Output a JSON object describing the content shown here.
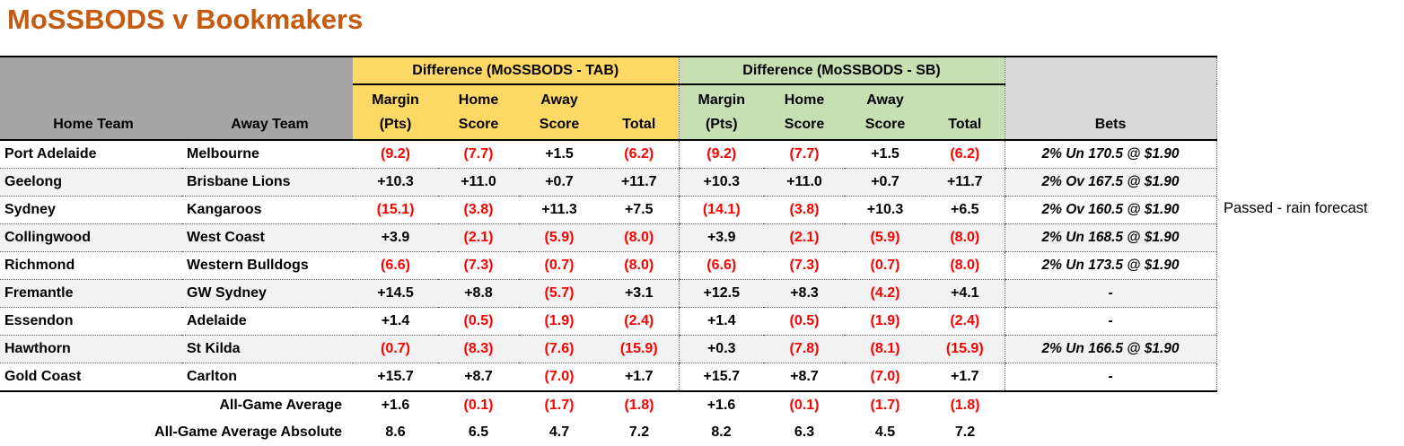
{
  "title": "MoSSBODS v Bookmakers",
  "side_note": "Passed - rain forecast",
  "table": {
    "group_headers": {
      "tab": "Difference (MoSSBODS - TAB)",
      "sb": "Difference (MoSSBODS - SB)"
    },
    "column_headers": {
      "home_team": "Home Team",
      "away_team": "Away Team",
      "bets": "Bets",
      "sub": [
        {
          "top": "Margin",
          "bottom": "(Pts)"
        },
        {
          "top": "Home",
          "bottom": "Score"
        },
        {
          "top": "Away",
          "bottom": "Score"
        },
        {
          "top": "",
          "bottom": "Total"
        }
      ]
    },
    "rows": [
      {
        "home": "Port Adelaide",
        "away": "Melbourne",
        "tab": [
          "(9.2)",
          "(7.7)",
          "+1.5",
          "(6.2)"
        ],
        "sb": [
          "(9.2)",
          "(7.7)",
          "+1.5",
          "(6.2)"
        ],
        "bet": "2% Un 170.5 @ $1.90"
      },
      {
        "home": "Geelong",
        "away": "Brisbane Lions",
        "tab": [
          "+10.3",
          "+11.0",
          "+0.7",
          "+11.7"
        ],
        "sb": [
          "+10.3",
          "+11.0",
          "+0.7",
          "+11.7"
        ],
        "bet": "2% Ov 167.5 @ $1.90"
      },
      {
        "home": "Sydney",
        "away": "Kangaroos",
        "tab": [
          "(15.1)",
          "(3.8)",
          "+11.3",
          "+7.5"
        ],
        "sb": [
          "(14.1)",
          "(3.8)",
          "+10.3",
          "+6.5"
        ],
        "bet": "2% Ov 160.5 @ $1.90"
      },
      {
        "home": "Collingwood",
        "away": "West Coast",
        "tab": [
          "+3.9",
          "(2.1)",
          "(5.9)",
          "(8.0)"
        ],
        "sb": [
          "+3.9",
          "(2.1)",
          "(5.9)",
          "(8.0)"
        ],
        "bet": "2% Un 168.5 @ $1.90"
      },
      {
        "home": "Richmond",
        "away": "Western Bulldogs",
        "tab": [
          "(6.6)",
          "(7.3)",
          "(0.7)",
          "(8.0)"
        ],
        "sb": [
          "(6.6)",
          "(7.3)",
          "(0.7)",
          "(8.0)"
        ],
        "bet": "2% Un 173.5 @ $1.90"
      },
      {
        "home": "Fremantle",
        "away": "GW Sydney",
        "tab": [
          "+14.5",
          "+8.8",
          "(5.7)",
          "+3.1"
        ],
        "sb": [
          "+12.5",
          "+8.3",
          "(4.2)",
          "+4.1"
        ],
        "bet": "-"
      },
      {
        "home": "Essendon",
        "away": "Adelaide",
        "tab": [
          "+1.4",
          "(0.5)",
          "(1.9)",
          "(2.4)"
        ],
        "sb": [
          "+1.4",
          "(0.5)",
          "(1.9)",
          "(2.4)"
        ],
        "bet": "-"
      },
      {
        "home": "Hawthorn",
        "away": "St Kilda",
        "tab": [
          "(0.7)",
          "(8.3)",
          "(7.6)",
          "(15.9)"
        ],
        "sb": [
          "+0.3",
          "(7.8)",
          "(8.1)",
          "(15.9)"
        ],
        "bet": "2% Un 166.5 @ $1.90"
      },
      {
        "home": "Gold Coast",
        "away": "Carlton",
        "tab": [
          "+15.7",
          "+8.7",
          "(7.0)",
          "+1.7"
        ],
        "sb": [
          "+15.7",
          "+8.7",
          "(7.0)",
          "+1.7"
        ],
        "bet": "-"
      }
    ],
    "summary_rows": [
      {
        "label": "All-Game Average",
        "tab": [
          "+1.6",
          "(0.1)",
          "(1.7)",
          "(1.8)"
        ],
        "sb": [
          "+1.6",
          "(0.1)",
          "(1.7)",
          "(1.8)"
        ]
      },
      {
        "label": "All-Game Average Absolute",
        "tab": [
          "8.6",
          "6.5",
          "4.7",
          "7.2"
        ],
        "sb": [
          "8.2",
          "6.3",
          "4.5",
          "7.2"
        ]
      }
    ]
  },
  "colors": {
    "title": "#C55A11",
    "negative_value": "#FF0000",
    "tab_section": "#FFD966",
    "sb_section": "#C6E0B4",
    "team_header": "#A6A6A6",
    "bets_header": "#D9D9D9",
    "row_stripe": "#F2F2F2"
  }
}
